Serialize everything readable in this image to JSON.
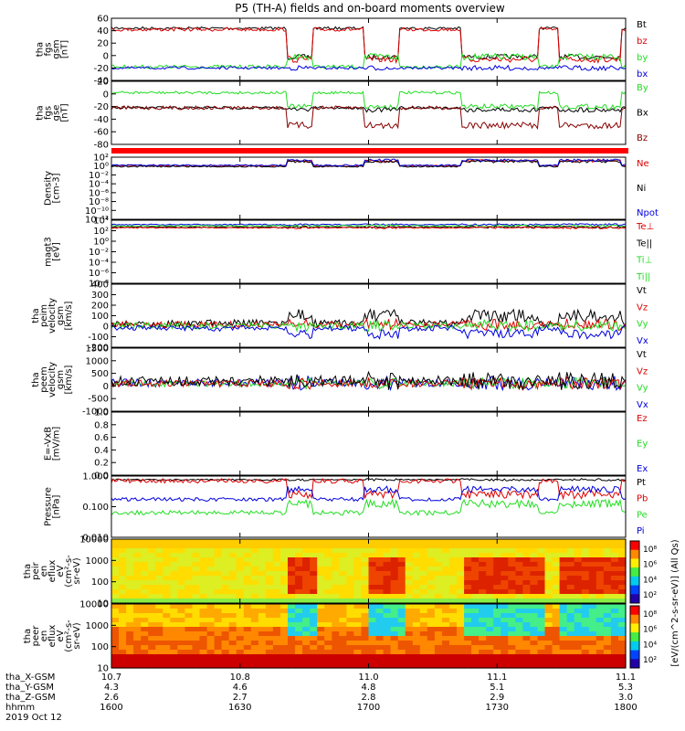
{
  "title": "P5 (TH-A) fields and on-board moments overview",
  "colors": {
    "black": "#000000",
    "red": "#dd0000",
    "green": "#22dd22",
    "blue": "#0000dd",
    "dkred": "#880000"
  },
  "chart_data": [
    {
      "id": "bgsm",
      "type": "line",
      "ylabels": [
        "tha",
        "fgs",
        "gsm",
        "[nT]"
      ],
      "ylim": [
        -40,
        60
      ],
      "ticks": [
        "60",
        "40",
        "20",
        "0",
        "-20",
        "-40"
      ],
      "legend": [
        {
          "name": "Bt",
          "color": "black"
        },
        {
          "name": "bz",
          "color": "red"
        },
        {
          "name": "by",
          "color": "green"
        },
        {
          "name": "bx",
          "color": "blue"
        }
      ]
    },
    {
      "id": "bgse",
      "type": "line",
      "ylabels": [
        "tha",
        "fgs",
        "gse",
        "[nT]"
      ],
      "ylim": [
        -80,
        20
      ],
      "ticks": [
        "20",
        "0",
        "-20",
        "-40",
        "-60",
        "-80"
      ],
      "legend": [
        {
          "name": "By",
          "color": "green"
        },
        {
          "name": "Bx",
          "color": "black"
        },
        {
          "name": "Bz",
          "color": "dkred"
        }
      ]
    },
    {
      "id": "density",
      "type": "line",
      "log": true,
      "ylabels": [
        "Density",
        "[cm-3]"
      ],
      "ticks": [
        "10²",
        "10⁰",
        "10⁻²",
        "10⁻⁴",
        "10⁻⁶",
        "10⁻⁸",
        "10⁻¹⁰",
        "10⁻¹²"
      ],
      "legend": [
        {
          "name": "Ne",
          "color": "red"
        },
        {
          "name": "Ni",
          "color": "black"
        },
        {
          "name": "Npot",
          "color": "blue"
        }
      ]
    },
    {
      "id": "temp",
      "type": "line",
      "log": true,
      "ylabels": [
        "magt3",
        "[eV]"
      ],
      "ticks": [
        "10⁴",
        "10²",
        "10⁰",
        "10⁻²",
        "10⁻⁴",
        "10⁻⁶",
        "10⁻⁸"
      ],
      "legend": [
        {
          "name": "Te⊥",
          "color": "red"
        },
        {
          "name": "Te||",
          "color": "black"
        },
        {
          "name": "Ti⊥",
          "color": "green"
        },
        {
          "name": "Ti||",
          "color": "green"
        }
      ]
    },
    {
      "id": "vi",
      "type": "line",
      "ylabels": [
        "tha",
        "peim",
        "velocity",
        "gsm",
        "[km/s]"
      ],
      "ylim": [
        -200,
        400
      ],
      "ticks": [
        "400",
        "300",
        "200",
        "100",
        "0",
        "-100",
        "-200"
      ],
      "legend": [
        {
          "name": "Vt",
          "color": "black"
        },
        {
          "name": "Vz",
          "color": "red"
        },
        {
          "name": "Vy",
          "color": "green"
        },
        {
          "name": "Vx",
          "color": "blue"
        }
      ]
    },
    {
      "id": "ve",
      "type": "line",
      "ylabels": [
        "tha",
        "peem",
        "velocity",
        "gsm",
        "[km/s]"
      ],
      "ylim": [
        -1000,
        1500
      ],
      "ticks": [
        "1500",
        "1000",
        "500",
        "0",
        "-500",
        "-1000"
      ],
      "legend": [
        {
          "name": "Vt",
          "color": "black"
        },
        {
          "name": "Vz",
          "color": "red"
        },
        {
          "name": "Vy",
          "color": "green"
        },
        {
          "name": "Vx",
          "color": "blue"
        }
      ]
    },
    {
      "id": "efield",
      "type": "line",
      "ylabels": [
        "E=-VxB",
        "[mV/m]"
      ],
      "ylim": [
        0,
        1
      ],
      "ticks": [
        "1.0",
        "0.8",
        "0.6",
        "0.4",
        "0.2",
        "0.0"
      ],
      "legend": [
        {
          "name": "Ez",
          "color": "red"
        },
        {
          "name": "Ey",
          "color": "green"
        },
        {
          "name": "Ex",
          "color": "blue"
        }
      ]
    },
    {
      "id": "pressure",
      "type": "line",
      "log": true,
      "ylabels": [
        "Pressure",
        "[nPa]"
      ],
      "ticks": [
        "1.000",
        "0.100",
        "0.010"
      ],
      "legend": [
        {
          "name": "Pt",
          "color": "black"
        },
        {
          "name": "Pb",
          "color": "red"
        },
        {
          "name": "Pe",
          "color": "green"
        },
        {
          "name": "Pi",
          "color": "blue"
        }
      ]
    },
    {
      "id": "ispec",
      "type": "heatmap",
      "ylabels": [
        "tha",
        "peir",
        "en",
        "eflux",
        "eV",
        "(cm²-s-",
        "sr-eV)"
      ],
      "ticks": [
        "10000",
        "1000",
        "100",
        "10"
      ]
    },
    {
      "id": "espec",
      "type": "heatmap",
      "ylabels": [
        "tha",
        "peer",
        "en",
        "eflux",
        "eV",
        "(cm²-s-",
        "sr-eV)"
      ],
      "ticks": [
        "10000",
        "1000",
        "100",
        "10"
      ]
    }
  ],
  "colorbar": {
    "ticks": [
      "10⁸",
      "10⁶",
      "10⁴",
      "10²",
      "10⁸",
      "10⁶",
      "10⁴",
      "10²"
    ],
    "label": "[eV/(cm^2-s-sr-eV)] (All Qs)"
  },
  "xaxis": {
    "rows": [
      {
        "label": "tha_X-GSM",
        "values": [
          "10.7",
          "10.8",
          "11.0",
          "11.1",
          "11.1"
        ]
      },
      {
        "label": "tha_Y-GSM",
        "values": [
          "4.3",
          "4.6",
          "4.8",
          "5.1",
          "5.3"
        ]
      },
      {
        "label": "tha_Z-GSM",
        "values": [
          "2.6",
          "2.7",
          "2.8",
          "2.9",
          "3.0"
        ]
      },
      {
        "label": "hhmm",
        "values": [
          "1600",
          "1630",
          "1700",
          "1730",
          "1800"
        ]
      }
    ],
    "date": "2019 Oct 12"
  }
}
